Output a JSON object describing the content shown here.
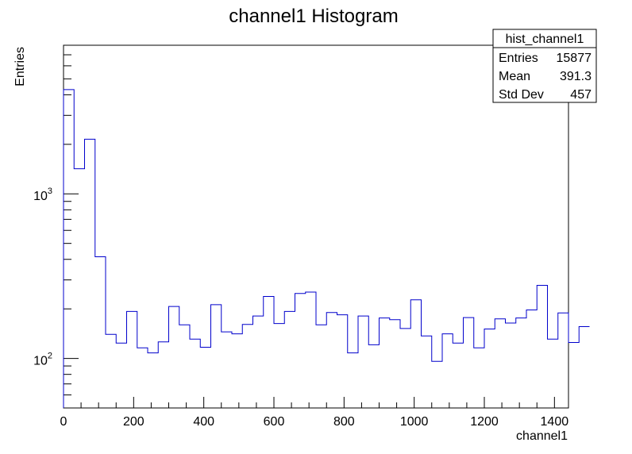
{
  "chart_data": {
    "type": "histogram",
    "title": "channel1 Histogram",
    "xlabel": "channel1",
    "ylabel": "Entries",
    "xlim": [
      0,
      1440
    ],
    "ylim": [
      50,
      8000
    ],
    "yscale": "log",
    "bin_width": 30,
    "x_ticks": [
      0,
      200,
      400,
      600,
      800,
      1000,
      1200,
      1400
    ],
    "x_tick_labels": [
      "0",
      "200",
      "400",
      "600",
      "800",
      "1000",
      "1200",
      "1400"
    ],
    "y_major_ticks": [
      100,
      1000
    ],
    "y_tick_labels": [
      {
        "base": "10",
        "exp": "2"
      },
      {
        "base": "10",
        "exp": "3"
      }
    ],
    "values": [
      4300,
      1420,
      2150,
      415,
      140,
      124,
      193,
      116,
      108,
      126,
      207,
      160,
      131,
      117,
      212,
      145,
      141,
      161,
      181,
      238,
      163,
      193,
      248,
      253,
      160,
      190,
      184,
      108,
      181,
      121,
      176,
      172,
      152,
      227,
      137,
      96,
      141,
      124,
      177,
      116,
      151,
      174,
      164,
      176,
      197,
      278,
      131,
      189,
      125,
      156
    ],
    "line_color": "#0000cc",
    "stats": {
      "name": "hist_channel1",
      "rows": [
        {
          "label": "Entries",
          "value": "15877"
        },
        {
          "label": "Mean",
          "value": "391.3"
        },
        {
          "label": "Std Dev",
          "value": "457"
        }
      ]
    }
  }
}
